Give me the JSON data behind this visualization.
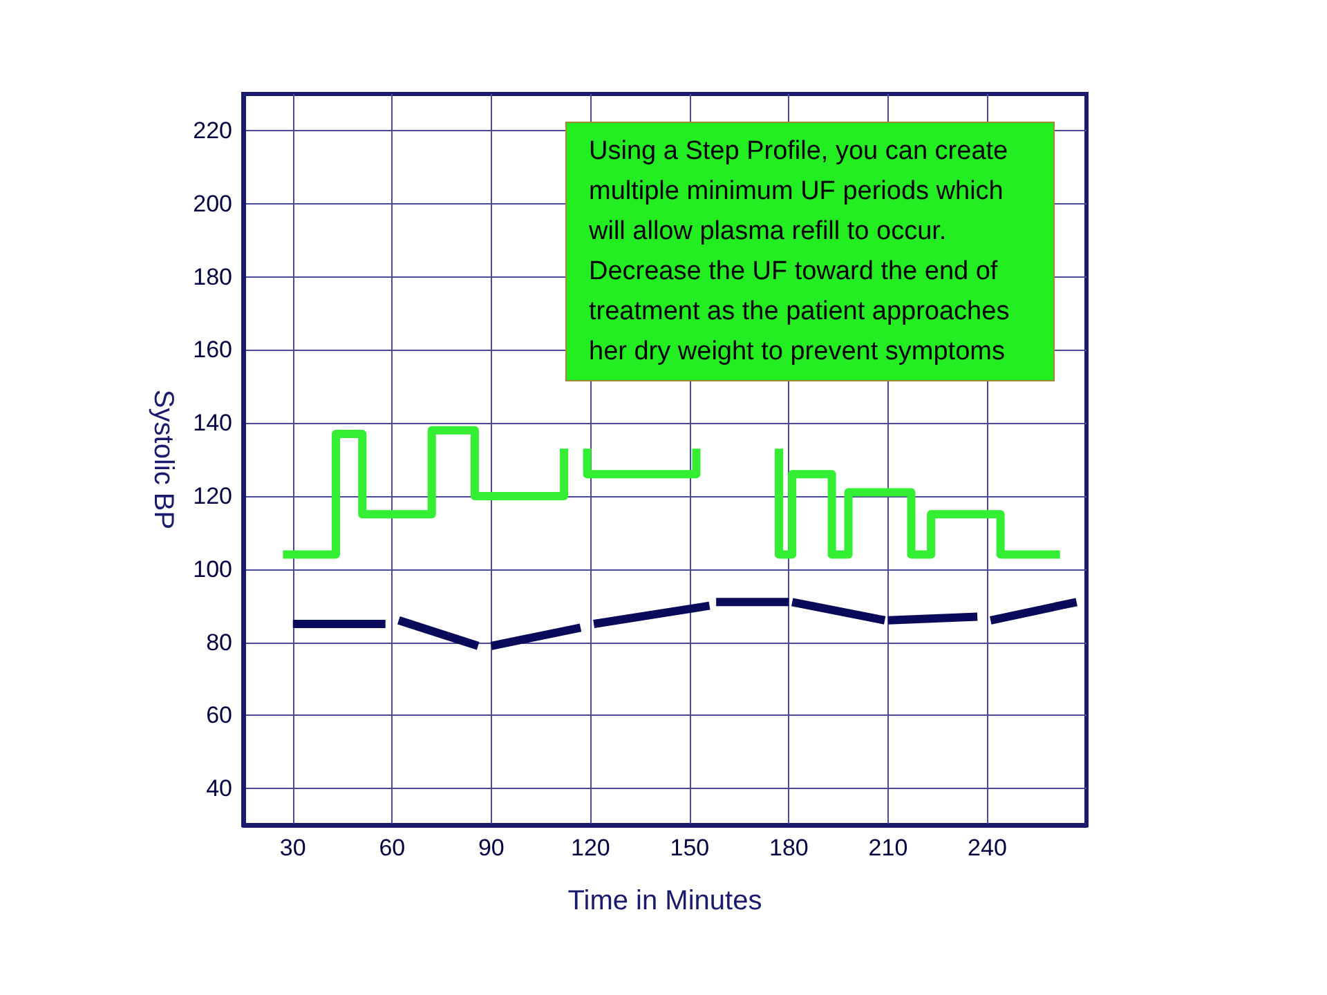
{
  "chart_data": {
    "type": "line",
    "xlabel": "Time in Minutes",
    "ylabel": "Systolic BP",
    "xlim": [
      15,
      270
    ],
    "xticks": [
      30,
      60,
      90,
      120,
      150,
      180,
      210,
      240
    ],
    "ylim": [
      30,
      230
    ],
    "yticks": [
      40,
      60,
      80,
      100,
      120,
      140,
      160,
      180,
      200,
      220
    ],
    "grid": true,
    "annotations": [
      "Using a Step Profile, you can create multiple minimum UF periods which will allow plasma refill to occur. Decrease the UF toward the end of treatment as the patient approaches her dry weight to prevent symptoms"
    ],
    "series": [
      {
        "color": "#33ee33",
        "x": [
          27,
          43,
          43,
          51,
          51,
          72,
          72,
          85,
          85,
          112,
          112
        ],
        "values": [
          104,
          104,
          137,
          137,
          115,
          115,
          138,
          138,
          120,
          120,
          133
        ]
      },
      {
        "color": "#33ee33",
        "x": [
          119,
          119,
          152,
          152
        ],
        "values": [
          133,
          126,
          126,
          133
        ]
      },
      {
        "color": "#33ee33",
        "x": [
          177,
          177,
          181,
          181,
          193,
          193,
          198,
          198,
          217,
          217,
          223,
          223,
          244,
          244,
          262
        ],
        "values": [
          133,
          104,
          104,
          126,
          126,
          104,
          104,
          121,
          121,
          104,
          104,
          115,
          115,
          104,
          104
        ]
      },
      {
        "color": "#0a0a5a",
        "x": [
          30,
          58
        ],
        "values": [
          85,
          85
        ]
      },
      {
        "color": "#0a0a5a",
        "x": [
          62,
          86
        ],
        "values": [
          86,
          79
        ]
      },
      {
        "color": "#0a0a5a",
        "x": [
          90,
          117
        ],
        "values": [
          79,
          84
        ]
      },
      {
        "color": "#0a0a5a",
        "x": [
          121,
          156
        ],
        "values": [
          85,
          90
        ]
      },
      {
        "color": "#0a0a5a",
        "x": [
          158,
          180
        ],
        "values": [
          91,
          91
        ]
      },
      {
        "color": "#0a0a5a",
        "x": [
          181,
          209
        ],
        "values": [
          91,
          86
        ]
      },
      {
        "color": "#0a0a5a",
        "x": [
          210,
          237
        ],
        "values": [
          86,
          87
        ]
      },
      {
        "color": "#0a0a5a",
        "x": [
          241,
          267
        ],
        "values": [
          86,
          91
        ]
      }
    ]
  }
}
